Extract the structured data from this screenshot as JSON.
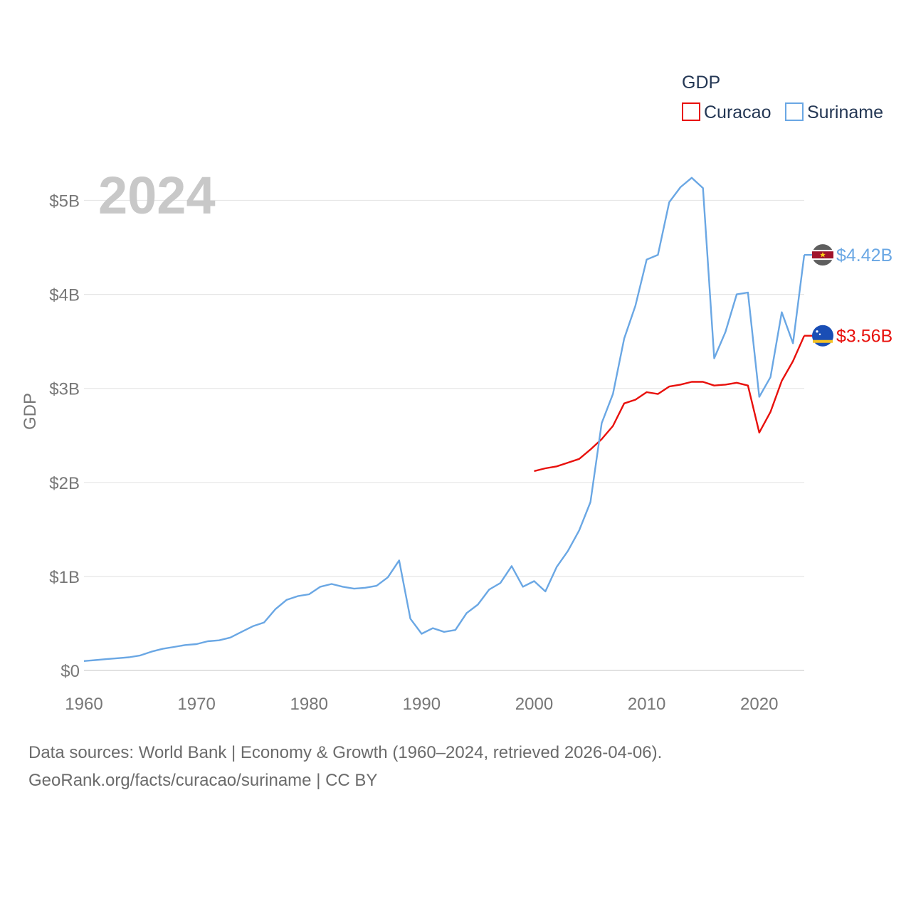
{
  "chart_data": {
    "type": "line",
    "title": "GDP",
    "ylabel": "GDP",
    "xlabel": "",
    "year_label": "2024",
    "xlim": [
      1960,
      2024
    ],
    "ylim": [
      0,
      5.5
    ],
    "x_ticks": [
      1960,
      1970,
      1980,
      1990,
      2000,
      2010,
      2020
    ],
    "x_tick_labels": [
      "1960",
      "1970",
      "1980",
      "1990",
      "2000",
      "2010",
      "2020"
    ],
    "y_ticks": [
      0,
      1,
      2,
      3,
      4,
      5
    ],
    "y_tick_labels": [
      "$0",
      "$1B",
      "$2B",
      "$3B",
      "$4B",
      "$5B"
    ],
    "grid": true,
    "legend_position": "top-right",
    "series": [
      {
        "name": "Curacao",
        "color": "#e8100c",
        "end_label": "$3.56B",
        "flag_icon": "curacao-flag-icon",
        "x": [
          2000,
          2001,
          2002,
          2003,
          2004,
          2005,
          2006,
          2007,
          2008,
          2009,
          2010,
          2011,
          2012,
          2013,
          2014,
          2015,
          2016,
          2017,
          2018,
          2019,
          2020,
          2021,
          2022,
          2023,
          2024
        ],
        "values": [
          2.12,
          2.15,
          2.17,
          2.21,
          2.25,
          2.35,
          2.46,
          2.6,
          2.84,
          2.88,
          2.96,
          2.94,
          3.02,
          3.04,
          3.07,
          3.07,
          3.03,
          3.04,
          3.06,
          3.03,
          2.53,
          2.75,
          3.08,
          3.29,
          3.56
        ]
      },
      {
        "name": "Suriname",
        "color": "#6aa7e4",
        "end_label": "$4.42B",
        "flag_icon": "suriname-flag-icon",
        "x": [
          1960,
          1961,
          1962,
          1963,
          1964,
          1965,
          1966,
          1967,
          1968,
          1969,
          1970,
          1971,
          1972,
          1973,
          1974,
          1975,
          1976,
          1977,
          1978,
          1979,
          1980,
          1981,
          1982,
          1983,
          1984,
          1985,
          1986,
          1987,
          1988,
          1989,
          1990,
          1991,
          1992,
          1993,
          1994,
          1995,
          1996,
          1997,
          1998,
          1999,
          2000,
          2001,
          2002,
          2003,
          2004,
          2005,
          2006,
          2007,
          2008,
          2009,
          2010,
          2011,
          2012,
          2013,
          2014,
          2015,
          2016,
          2017,
          2018,
          2019,
          2020,
          2021,
          2022,
          2023,
          2024
        ],
        "values": [
          0.1,
          0.11,
          0.12,
          0.13,
          0.14,
          0.16,
          0.2,
          0.23,
          0.25,
          0.27,
          0.28,
          0.31,
          0.32,
          0.35,
          0.41,
          0.47,
          0.51,
          0.65,
          0.75,
          0.79,
          0.81,
          0.89,
          0.92,
          0.89,
          0.87,
          0.88,
          0.9,
          0.99,
          1.17,
          0.55,
          0.39,
          0.45,
          0.41,
          0.43,
          0.61,
          0.7,
          0.86,
          0.93,
          1.11,
          0.89,
          0.95,
          0.84,
          1.1,
          1.27,
          1.49,
          1.79,
          2.63,
          2.94,
          3.53,
          3.88,
          4.37,
          4.42,
          4.98,
          5.14,
          5.24,
          5.13,
          3.32,
          3.6,
          4.0,
          4.02,
          2.91,
          3.12,
          3.81,
          3.48,
          4.42
        ]
      }
    ],
    "source_line1": "Data sources: World Bank | Economy & Growth (1960–2024, retrieved 2026-04-06).",
    "source_line2": "GeoRank.org/facts/curacao/suriname | CC BY"
  },
  "colors": {
    "axis_text": "#777777",
    "grid": "#e6e6e6",
    "legend_title": "#243754",
    "year_watermark": "#c8c8c8"
  }
}
